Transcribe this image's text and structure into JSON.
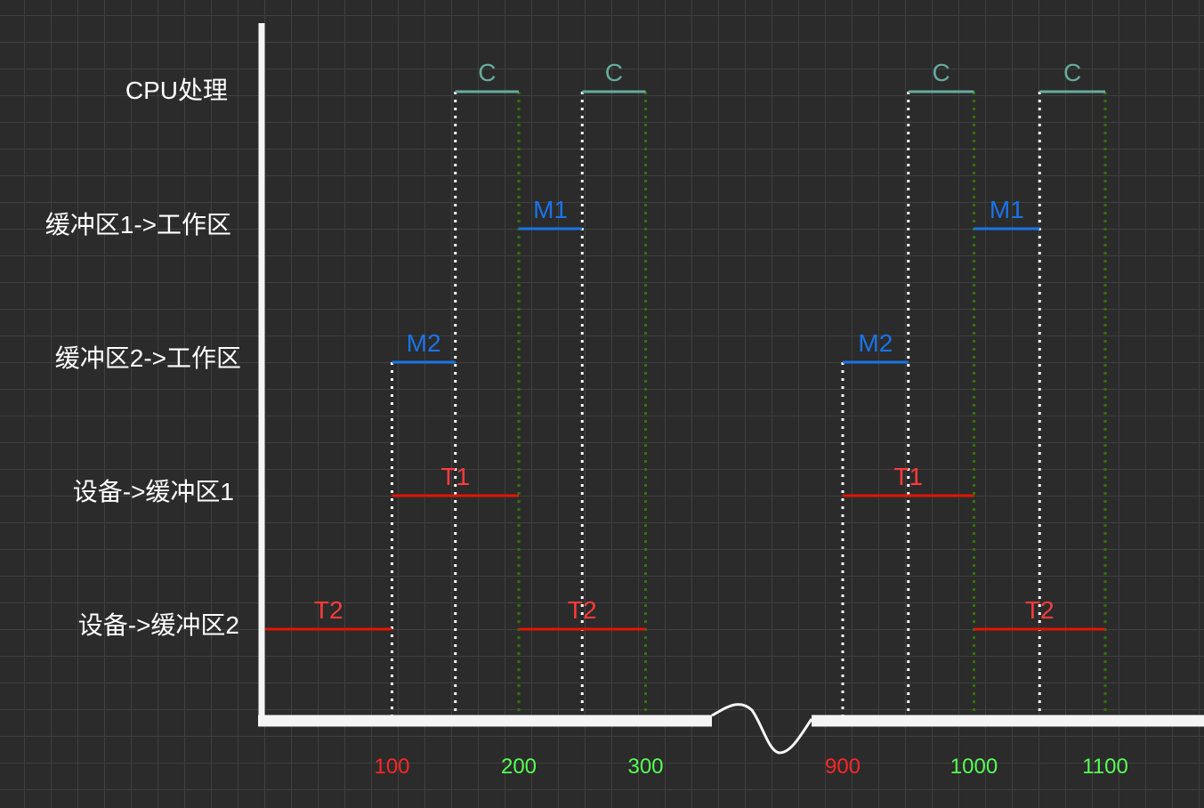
{
  "chart_data": {
    "type": "gantt",
    "lanes": [
      {
        "id": "cpu",
        "label": "CPU处理"
      },
      {
        "id": "b1w",
        "label": "缓冲区1->工作区"
      },
      {
        "id": "b2w",
        "label": "缓冲区2->工作区"
      },
      {
        "id": "db1",
        "label": "设备->缓冲区1"
      },
      {
        "id": "db2",
        "label": "设备->缓冲区2"
      }
    ],
    "segments": [
      {
        "lane": "db2",
        "label": "T2",
        "start": 0,
        "end": 100
      },
      {
        "lane": "b2w",
        "label": "M2",
        "start": 100,
        "end": 150
      },
      {
        "lane": "db1",
        "label": "T1",
        "start": 100,
        "end": 200
      },
      {
        "lane": "cpu",
        "label": "C",
        "start": 150,
        "end": 200
      },
      {
        "lane": "b1w",
        "label": "M1",
        "start": 200,
        "end": 250
      },
      {
        "lane": "db2",
        "label": "T2",
        "start": 200,
        "end": 300
      },
      {
        "lane": "cpu",
        "label": "C",
        "start": 250,
        "end": 300
      },
      {
        "lane": "b2w",
        "label": "M2",
        "start": 900,
        "end": 950
      },
      {
        "lane": "db1",
        "label": "T1",
        "start": 900,
        "end": 1000
      },
      {
        "lane": "cpu",
        "label": "C",
        "start": 950,
        "end": 1000
      },
      {
        "lane": "b1w",
        "label": "M1",
        "start": 1000,
        "end": 1050
      },
      {
        "lane": "db2",
        "label": "T2",
        "start": 1000,
        "end": 1100
      },
      {
        "lane": "cpu",
        "label": "C",
        "start": 1050,
        "end": 1100
      }
    ],
    "white_markers": [
      100,
      150,
      250,
      900,
      950,
      1050
    ],
    "green_markers": [
      200,
      300,
      1000,
      1100
    ],
    "ticks": [
      {
        "value": 100,
        "label": "100",
        "color": "#ff2626"
      },
      {
        "value": 200,
        "label": "200",
        "color": "#55ff55"
      },
      {
        "value": 300,
        "label": "300",
        "color": "#55ff55"
      },
      {
        "value": 900,
        "label": "900",
        "color": "#ff2626"
      },
      {
        "value": 1000,
        "label": "1000",
        "color": "#55ff55"
      },
      {
        "value": 1100,
        "label": "1100",
        "color": "#55ff55"
      }
    ],
    "axis_break": {
      "after": 300,
      "before": 900
    },
    "colors": {
      "cpu": "#67ab9f",
      "b1w": "#1a74e8",
      "b2w": "#1a74e8",
      "db1": "#e51400",
      "db2": "#e51400",
      "label_red": "#ff3b3b",
      "white_marker": "#ffffff",
      "green_marker": "#2d7a00",
      "axis": "#f5f5f5"
    }
  }
}
